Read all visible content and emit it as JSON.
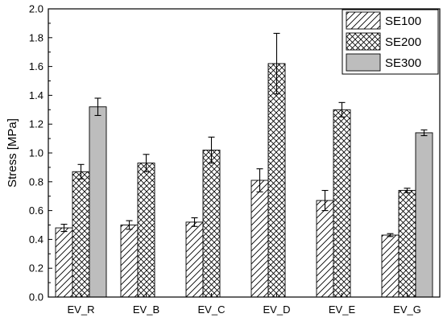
{
  "chart_data": {
    "type": "bar",
    "xlabel": "",
    "ylabel": "Stress [MPa]",
    "ylim": [
      0.0,
      2.0
    ],
    "yticks": [
      "0.0",
      "0.2",
      "0.4",
      "0.6",
      "0.8",
      "1.0",
      "1.2",
      "1.4",
      "1.6",
      "1.8",
      "2.0"
    ],
    "categories": [
      "EV_R",
      "EV_B",
      "EV_C",
      "EV_D",
      "EV_E",
      "EV_G"
    ],
    "grid": false,
    "legend_position": "top-right",
    "series": [
      {
        "name": "SE100",
        "pattern": "diagonal-hatch",
        "values": [
          0.48,
          0.5,
          0.52,
          0.81,
          0.67,
          0.43
        ],
        "errors": [
          0.025,
          0.03,
          0.03,
          0.08,
          0.07,
          0.01
        ]
      },
      {
        "name": "SE200",
        "pattern": "cross-hatch",
        "values": [
          0.87,
          0.93,
          1.02,
          1.62,
          1.3,
          0.74
        ],
        "errors": [
          0.05,
          0.06,
          0.09,
          0.21,
          0.05,
          0.015
        ]
      },
      {
        "name": "SE300",
        "pattern": "solid-gray",
        "color": "#bdbdbd",
        "values": [
          1.32,
          null,
          null,
          null,
          null,
          1.14
        ],
        "errors": [
          0.06,
          null,
          null,
          null,
          null,
          0.02
        ]
      }
    ]
  }
}
